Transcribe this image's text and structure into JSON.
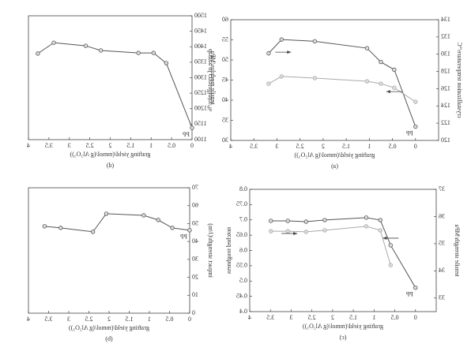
{
  "chart_data": [
    {
      "type": "line",
      "caption": "(a)",
      "xlabel": "grafting yield/(mmol/(g Al₂O₃))",
      "ylabel": "crystallization temperature/°C",
      "y2label": "degree of crystallinity/%",
      "annotation": "PP",
      "xlim": [
        -0.5,
        4.0
      ],
      "xticks": [
        0,
        0.5,
        1.0,
        1.5,
        2.0,
        2.5,
        3.0,
        3.5,
        4.0
      ],
      "ylim": [
        120,
        134
      ],
      "yticks": [
        120,
        122,
        124,
        126,
        128,
        130,
        132,
        134
      ],
      "y2lim": [
        30,
        60
      ],
      "y2ticks": [
        30,
        35,
        40,
        45,
        50,
        55,
        60
      ],
      "x": [
        3.18,
        2.9,
        2.18,
        1.05,
        0.75,
        0.46,
        0
      ],
      "series": [
        {
          "name": "crystallization temperature",
          "color": "#555555",
          "values": [
            130.1,
            131.7,
            131.5,
            130.7,
            129.1,
            128.2,
            121.6
          ]
        },
        {
          "name": "degree of crystallinity",
          "color": "#aaaaaa",
          "axis": "y2",
          "values": [
            44.1,
            45.9,
            45.5,
            44.7,
            44.1,
            43.1,
            39.6
          ]
        }
      ]
    },
    {
      "type": "line",
      "caption": "(b)",
      "xlabel": "grafting yield/(mmol/(g Al₂O₃))",
      "ylabel": "impact strength/(J/m)",
      "annotation": "PP",
      "xlim": [
        0,
        4.0
      ],
      "xticks": [
        0,
        0.5,
        1.0,
        1.5,
        2.0,
        2.5,
        3.0,
        3.5,
        4.0
      ],
      "ylim": [
        0,
        70
      ],
      "yticks": [
        0,
        10,
        20,
        30,
        40,
        50,
        60,
        70
      ],
      "x": [
        3.6,
        3.2,
        2.4,
        2.07,
        1.14,
        0.78,
        0.43,
        0
      ],
      "series": [
        {
          "name": "impact strength",
          "color": "#555555",
          "values": [
            48.5,
            47.6,
            45.4,
            55.5,
            54.6,
            52,
            47.6,
            46.3
          ]
        }
      ]
    },
    {
      "type": "line",
      "caption": "(c)",
      "xlabel": "grafting yield/(mmol/(g Al₂O₃))",
      "ylabel": "tensile strength/MPa",
      "y2label": "notched toughness",
      "annotation": "PP",
      "xlim": [
        -0.5,
        4.0
      ],
      "xticks": [
        0,
        0.5,
        1.0,
        1.5,
        2.0,
        2.5,
        3.0,
        3.5,
        4.0
      ],
      "ylim": [
        32.5,
        37
      ],
      "yticks": [
        33,
        34,
        35,
        36,
        37
      ],
      "y2lim": [
        0.4,
        0.8
      ],
      "y2ticks": [
        0.4,
        0.45,
        0.5,
        0.55,
        0.6,
        0.65,
        0.7,
        0.75,
        0.8
      ],
      "x": [
        3.49,
        3.08,
        2.64,
        2.19,
        1.19,
        0.85,
        0.6,
        0
      ],
      "series": [
        {
          "name": "tensile strength",
          "color": "#555555",
          "values": [
            35.84,
            35.84,
            35.81,
            35.87,
            35.96,
            35.87,
            34.94,
            33.38
          ]
        },
        {
          "name": "notched toughness",
          "color": "#aaaaaa",
          "axis": "y2",
          "values": [
            0.663,
            0.663,
            0.661,
            0.666,
            0.679,
            0.666,
            0.552,
            null
          ]
        }
      ]
    },
    {
      "type": "line",
      "caption": "(d)",
      "xlabel": "grafting yield/(mmol/(g Al₂O₃))",
      "ylabel": "tensile modulus/MPa",
      "annotation": "PP",
      "xlim": [
        0,
        4.0
      ],
      "xticks": [
        0,
        0.5,
        1.0,
        1.5,
        2.0,
        2.5,
        3.0,
        3.5,
        4.0
      ],
      "ylim": [
        1100,
        1500
      ],
      "yticks": [
        1100,
        1150,
        1200,
        1250,
        1300,
        1350,
        1400,
        1450,
        1500
      ],
      "x": [
        3.77,
        3.38,
        2.6,
        2.23,
        1.31,
        0.94,
        0.63,
        0
      ],
      "series": [
        {
          "name": "tensile modulus",
          "color": "#555555",
          "values": [
            1378,
            1413,
            1403,
            1388,
            1380,
            1380,
            1347,
            1138
          ]
        }
      ]
    }
  ]
}
